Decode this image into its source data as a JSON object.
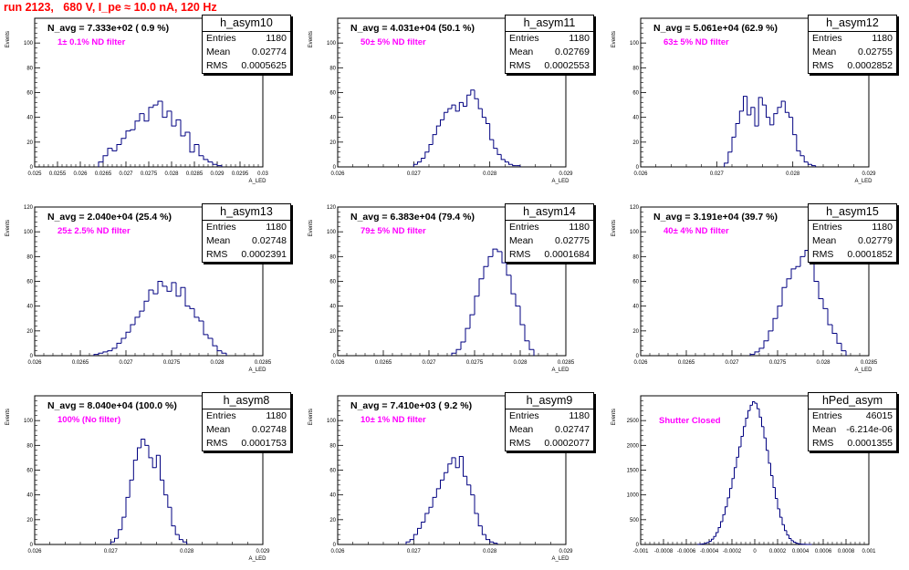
{
  "header": {
    "run_title": "run 2123,   680 V, I_pe ≈ 10.0 nA, 120 Hz"
  },
  "colors": {
    "title": "#ff0000",
    "filter_text": "#ff00ff",
    "hist_line": "#000080",
    "frame": "#000000"
  },
  "chart_data": [
    {
      "type": "bar",
      "name": "h_asym10",
      "title": "N_avg = 7.333e+02 ( 0.9 %)",
      "annotation": "1± 0.1% ND filter",
      "xlabel": "A_LED",
      "ylabel": "Events",
      "xlim": [
        0.025,
        0.03
      ],
      "ylim": [
        0,
        120
      ],
      "show_max_ytick": false,
      "xticks": [
        0.025,
        0.0255,
        0.026,
        0.0265,
        0.027,
        0.0275,
        0.028,
        0.0285,
        0.029,
        0.0295,
        0.03
      ],
      "xtick_labels": [
        "0.025",
        "0.0255",
        "0.026",
        "0.0265",
        "0.027",
        "0.0275",
        "0.028",
        "0.0285",
        "0.029",
        "0.0295",
        "0.03"
      ],
      "yticks": [
        0,
        20,
        40,
        60,
        80,
        100
      ],
      "stats": {
        "entries": "1180",
        "mean": "0.02774",
        "rms": "0.0005625"
      },
      "bin_edges": [
        0.0264,
        0.0265,
        0.0266,
        0.0267,
        0.0268,
        0.0269,
        0.027,
        0.0271,
        0.0272,
        0.0273,
        0.0274,
        0.0275,
        0.0276,
        0.0277,
        0.0278,
        0.0279,
        0.028,
        0.0281,
        0.0282,
        0.0283,
        0.0284,
        0.0285,
        0.0286,
        0.0287,
        0.0288,
        0.0289,
        0.029,
        0.0291
      ],
      "values": [
        4,
        9,
        15,
        13,
        18,
        23,
        29,
        30,
        37,
        43,
        37,
        48,
        50,
        53,
        40,
        45,
        33,
        38,
        25,
        28,
        12,
        18,
        9,
        6,
        4,
        2,
        1
      ]
    },
    {
      "type": "bar",
      "name": "h_asym11",
      "title": "N_avg = 4.031e+04 (50.1 %)",
      "annotation": "50± 5% ND filter",
      "xlabel": "A_LED",
      "ylabel": "Events",
      "xlim": [
        0.026,
        0.029
      ],
      "ylim": [
        0,
        120
      ],
      "show_max_ytick": false,
      "xticks": [
        0.026,
        0.027,
        0.028,
        0.029
      ],
      "xtick_labels": [
        "0.026",
        "0.027",
        "0.028",
        "0.029"
      ],
      "yticks": [
        0,
        20,
        40,
        60,
        80,
        100
      ],
      "stats": {
        "entries": "1180",
        "mean": "0.02769",
        "rms": "0.0002553"
      },
      "bin_edges": [
        0.027,
        0.02705,
        0.0271,
        0.02715,
        0.0272,
        0.02725,
        0.0273,
        0.02735,
        0.0274,
        0.02745,
        0.0275,
        0.02755,
        0.0276,
        0.02765,
        0.0277,
        0.02775,
        0.0278,
        0.02785,
        0.0279,
        0.02795,
        0.028,
        0.02805,
        0.0281,
        0.02815,
        0.0282,
        0.02825,
        0.0283,
        0.02835,
        0.0284
      ],
      "values": [
        2,
        4,
        7,
        12,
        18,
        26,
        33,
        38,
        44,
        47,
        50,
        45,
        52,
        49,
        58,
        62,
        55,
        47,
        40,
        35,
        22,
        15,
        10,
        6,
        4,
        2,
        1,
        1
      ]
    },
    {
      "type": "bar",
      "name": "h_asym12",
      "title": "N_avg = 5.061e+04 (62.9 %)",
      "annotation": "63± 5% ND filter",
      "xlabel": "A_LED",
      "ylabel": "Events",
      "xlim": [
        0.026,
        0.029
      ],
      "ylim": [
        0,
        120
      ],
      "show_max_ytick": false,
      "xticks": [
        0.026,
        0.027,
        0.028,
        0.029
      ],
      "xtick_labels": [
        "0.026",
        "0.027",
        "0.028",
        "0.029"
      ],
      "yticks": [
        0,
        20,
        40,
        60,
        80,
        100
      ],
      "stats": {
        "entries": "1180",
        "mean": "0.02755",
        "rms": "0.0002852"
      },
      "bin_edges": [
        0.0271,
        0.02715,
        0.0272,
        0.02725,
        0.0273,
        0.02735,
        0.0274,
        0.02745,
        0.0275,
        0.02755,
        0.0276,
        0.02765,
        0.0277,
        0.02775,
        0.0278,
        0.02785,
        0.0279,
        0.02795,
        0.028,
        0.02805,
        0.0281,
        0.02815,
        0.0282,
        0.02825,
        0.0283
      ],
      "values": [
        3,
        12,
        24,
        35,
        45,
        57,
        42,
        48,
        33,
        56,
        50,
        40,
        34,
        43,
        48,
        53,
        44,
        40,
        26,
        13,
        9,
        4,
        2,
        1
      ]
    },
    {
      "type": "bar",
      "name": "h_asym13",
      "title": "N_avg = 2.040e+04 (25.4 %)",
      "annotation": "25± 2.5% ND filter",
      "xlabel": "A_LED",
      "ylabel": "Events",
      "xlim": [
        0.026,
        0.0285
      ],
      "ylim": [
        0,
        120
      ],
      "show_max_ytick": true,
      "xticks": [
        0.026,
        0.0265,
        0.027,
        0.0275,
        0.028,
        0.0285
      ],
      "xtick_labels": [
        "0.026",
        "0.0265",
        "0.027",
        "0.0275",
        "0.028",
        "0.0285"
      ],
      "yticks": [
        0,
        20,
        40,
        60,
        80,
        100,
        120
      ],
      "stats": {
        "entries": "1180",
        "mean": "0.02748",
        "rms": "0.0002391"
      },
      "bin_edges": [
        0.02665,
        0.0267,
        0.02675,
        0.0268,
        0.02685,
        0.0269,
        0.02695,
        0.027,
        0.02705,
        0.0271,
        0.02715,
        0.0272,
        0.02725,
        0.0273,
        0.02735,
        0.0274,
        0.02745,
        0.0275,
        0.02755,
        0.0276,
        0.02765,
        0.0277,
        0.02775,
        0.0278,
        0.02785,
        0.0279,
        0.02795,
        0.028,
        0.02805,
        0.0281
      ],
      "values": [
        1,
        2,
        3,
        4,
        6,
        10,
        14,
        19,
        25,
        31,
        36,
        44,
        53,
        50,
        60,
        56,
        52,
        59,
        48,
        55,
        40,
        38,
        31,
        28,
        17,
        14,
        8,
        4,
        2
      ]
    },
    {
      "type": "bar",
      "name": "h_asym14",
      "title": "N_avg = 6.383e+04 (79.4 %)",
      "annotation": "79± 5% ND filter",
      "xlabel": "A_LED",
      "ylabel": "Events",
      "xlim": [
        0.026,
        0.0285
      ],
      "ylim": [
        0,
        120
      ],
      "show_max_ytick": true,
      "xticks": [
        0.026,
        0.0265,
        0.027,
        0.0275,
        0.028,
        0.0285
      ],
      "xtick_labels": [
        "0.026",
        "0.0265",
        "0.027",
        "0.0275",
        "0.028",
        "0.0285"
      ],
      "yticks": [
        0,
        20,
        40,
        60,
        80,
        100,
        120
      ],
      "stats": {
        "entries": "1180",
        "mean": "0.02775",
        "rms": "0.0001684"
      },
      "bin_edges": [
        0.02725,
        0.0273,
        0.02735,
        0.0274,
        0.02745,
        0.0275,
        0.02755,
        0.0276,
        0.02765,
        0.0277,
        0.02775,
        0.0278,
        0.02785,
        0.0279,
        0.02795,
        0.028,
        0.02805,
        0.0281,
        0.02815
      ],
      "values": [
        2,
        5,
        11,
        22,
        33,
        48,
        62,
        72,
        80,
        86,
        84,
        75,
        65,
        50,
        40,
        25,
        12,
        5
      ]
    },
    {
      "type": "bar",
      "name": "h_asym15",
      "title": "N_avg = 3.191e+04 (39.7 %)",
      "annotation": "40± 4% ND filter",
      "xlabel": "A_LED",
      "ylabel": "Events",
      "xlim": [
        0.026,
        0.0285
      ],
      "ylim": [
        0,
        120
      ],
      "show_max_ytick": true,
      "xticks": [
        0.026,
        0.0265,
        0.027,
        0.0275,
        0.028,
        0.0285
      ],
      "xtick_labels": [
        "0.026",
        "0.0265",
        "0.027",
        "0.0275",
        "0.028",
        "0.0285"
      ],
      "yticks": [
        0,
        20,
        40,
        60,
        80,
        100,
        120
      ],
      "stats": {
        "entries": "1180",
        "mean": "0.02779",
        "rms": "0.0001852"
      },
      "bin_edges": [
        0.0272,
        0.02725,
        0.0273,
        0.02735,
        0.0274,
        0.02745,
        0.0275,
        0.02755,
        0.0276,
        0.02765,
        0.0277,
        0.02775,
        0.0278,
        0.02785,
        0.0279,
        0.02795,
        0.028,
        0.02805,
        0.0281,
        0.02815,
        0.0282,
        0.02825
      ],
      "values": [
        1,
        3,
        6,
        12,
        20,
        30,
        40,
        55,
        62,
        70,
        72,
        80,
        85,
        75,
        60,
        46,
        38,
        25,
        18,
        10,
        4
      ]
    },
    {
      "type": "bar",
      "name": "h_asym8",
      "title": "N_avg = 8.040e+04 (100.0 %)",
      "annotation": "100% (No filter)",
      "xlabel": "A_LED",
      "ylabel": "Events",
      "xlim": [
        0.026,
        0.029
      ],
      "ylim": [
        0,
        120
      ],
      "show_max_ytick": false,
      "xticks": [
        0.026,
        0.027,
        0.028,
        0.029
      ],
      "xtick_labels": [
        "0.026",
        "0.027",
        "0.028",
        "0.029"
      ],
      "yticks": [
        0,
        20,
        40,
        60,
        80,
        100
      ],
      "stats": {
        "entries": "1180",
        "mean": "0.02748",
        "rms": "0.0001753"
      },
      "bin_edges": [
        0.027,
        0.02705,
        0.0271,
        0.02715,
        0.0272,
        0.02725,
        0.0273,
        0.02735,
        0.0274,
        0.02745,
        0.0275,
        0.02755,
        0.0276,
        0.02765,
        0.0277,
        0.02775,
        0.0278,
        0.02785,
        0.0279,
        0.02795,
        0.028
      ],
      "values": [
        2,
        5,
        12,
        22,
        38,
        52,
        68,
        78,
        85,
        80,
        70,
        62,
        72,
        52,
        40,
        30,
        15,
        8,
        4,
        2
      ]
    },
    {
      "type": "bar",
      "name": "h_asym9",
      "title": "N_avg = 7.410e+03 ( 9.2 %)",
      "annotation": "10± 1% ND filter",
      "xlabel": "A_LED",
      "ylabel": "Events",
      "xlim": [
        0.026,
        0.029
      ],
      "ylim": [
        0,
        120
      ],
      "show_max_ytick": false,
      "xticks": [
        0.026,
        0.027,
        0.028,
        0.029
      ],
      "xtick_labels": [
        "0.026",
        "0.027",
        "0.028",
        "0.029"
      ],
      "yticks": [
        0,
        20,
        40,
        60,
        80,
        100
      ],
      "stats": {
        "entries": "1180",
        "mean": "0.02747",
        "rms": "0.0002077"
      },
      "bin_edges": [
        0.0269,
        0.02695,
        0.027,
        0.02705,
        0.0271,
        0.02715,
        0.0272,
        0.02725,
        0.0273,
        0.02735,
        0.0274,
        0.02745,
        0.0275,
        0.02755,
        0.0276,
        0.02765,
        0.0277,
        0.02775,
        0.0278,
        0.02785,
        0.0279,
        0.02795,
        0.028,
        0.02805,
        0.0281
      ],
      "values": [
        2,
        4,
        8,
        13,
        18,
        25,
        30,
        38,
        45,
        52,
        58,
        65,
        70,
        62,
        71,
        55,
        48,
        40,
        25,
        15,
        8,
        4,
        2,
        1
      ]
    },
    {
      "type": "bar",
      "name": "hPed_asym",
      "title": "",
      "annotation": "Shutter Closed",
      "xlabel": "",
      "ylabel": "Events",
      "xlim": [
        -0.001,
        0.001
      ],
      "ylim": [
        0,
        3000
      ],
      "show_max_ytick": false,
      "xticks": [
        -0.001,
        -0.0008,
        -0.0006,
        -0.0004,
        -0.0002,
        0,
        0.0002,
        0.0004,
        0.0006,
        0.0008,
        0.001
      ],
      "xtick_labels": [
        "-0.001",
        "-0.0008",
        "-0.0006",
        "-0.0004",
        "-0.0002",
        "0",
        "0.0002",
        "0.0004",
        "0.0006",
        "0.0008",
        "0.001"
      ],
      "yticks": [
        0,
        500,
        1000,
        1500,
        2000,
        2500
      ],
      "stats": {
        "entries": "46015",
        "mean": "-6.214e-06",
        "rms": "0.0001355"
      },
      "bin_edges": [
        -0.0005,
        -0.00048,
        -0.00046,
        -0.00044,
        -0.00042,
        -0.0004,
        -0.00038,
        -0.00036,
        -0.00034,
        -0.00032,
        -0.0003,
        -0.00028,
        -0.00026,
        -0.00024,
        -0.00022,
        -0.0002,
        -0.00018,
        -0.00016,
        -0.00014,
        -0.00012,
        -0.0001,
        -8e-05,
        -6e-05,
        -4e-05,
        -2e-05,
        0,
        2e-05,
        4e-05,
        6e-05,
        8e-05,
        0.0001,
        0.00012,
        0.00014,
        0.00016,
        0.00018,
        0.0002,
        0.00022,
        0.00024,
        0.00026,
        0.00028,
        0.0003,
        0.00032,
        0.00034,
        0.00036,
        0.00038,
        0.0004,
        0.00042,
        0.00044,
        0.00046,
        0.00048,
        0.0005
      ],
      "values": [
        3,
        6,
        12,
        22,
        40,
        65,
        105,
        160,
        240,
        340,
        460,
        600,
        760,
        940,
        1130,
        1330,
        1550,
        1760,
        1970,
        2180,
        2380,
        2550,
        2700,
        2810,
        2880,
        2850,
        2740,
        2570,
        2380,
        2150,
        1900,
        1640,
        1390,
        1150,
        930,
        720,
        550,
        400,
        280,
        190,
        120,
        75,
        45,
        25,
        14,
        8,
        4,
        2,
        1,
        0
      ]
    }
  ]
}
